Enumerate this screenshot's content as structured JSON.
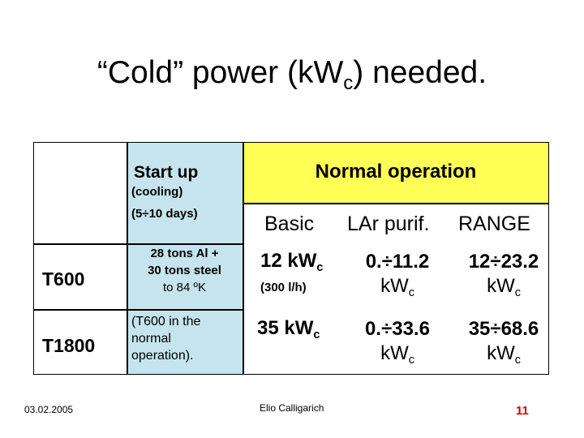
{
  "slide": {
    "title_main": "“Cold” power (kW",
    "title_sub": "c",
    "title_end": ") needed."
  },
  "table": {
    "startup_header": "Start up",
    "startup_note1": "(cooling)",
    "startup_note2": "(5÷10 days)",
    "normal_header": "Normal operation",
    "col_basic": "Basic",
    "col_lar": "LAr purif.",
    "col_range": "RANGE",
    "rows": [
      {
        "label": "T600",
        "startup_lines": [
          "28 tons  Al +",
          "30 tons  steel",
          "to 84 ºK"
        ],
        "basic_value": "12 kW",
        "basic_sub": "c",
        "basic_note": "(300 l/h)",
        "lar_value": "0.÷11.2",
        "lar_unit": "kW",
        "lar_sub": "c",
        "range_value": "12÷23.2",
        "range_unit": "kW",
        "range_sub": "c"
      },
      {
        "label": "T1800",
        "startup_lines": [
          "(T600 in the",
          "normal",
          "operation)."
        ],
        "basic_value": "35 kW",
        "basic_sub": "c",
        "lar_value": "0.÷33.6",
        "lar_unit": "kW",
        "lar_sub": "c",
        "range_value": "35÷68.6",
        "range_unit": "kW",
        "range_sub": "c"
      }
    ]
  },
  "footer": {
    "date": "03.02.2005",
    "author": "Elio Calligarich",
    "page_number": "11",
    "page_number_color": "#cc0000"
  },
  "colors": {
    "startup_bg": "#c6e4ee",
    "normal_bg": "#ffff55"
  }
}
